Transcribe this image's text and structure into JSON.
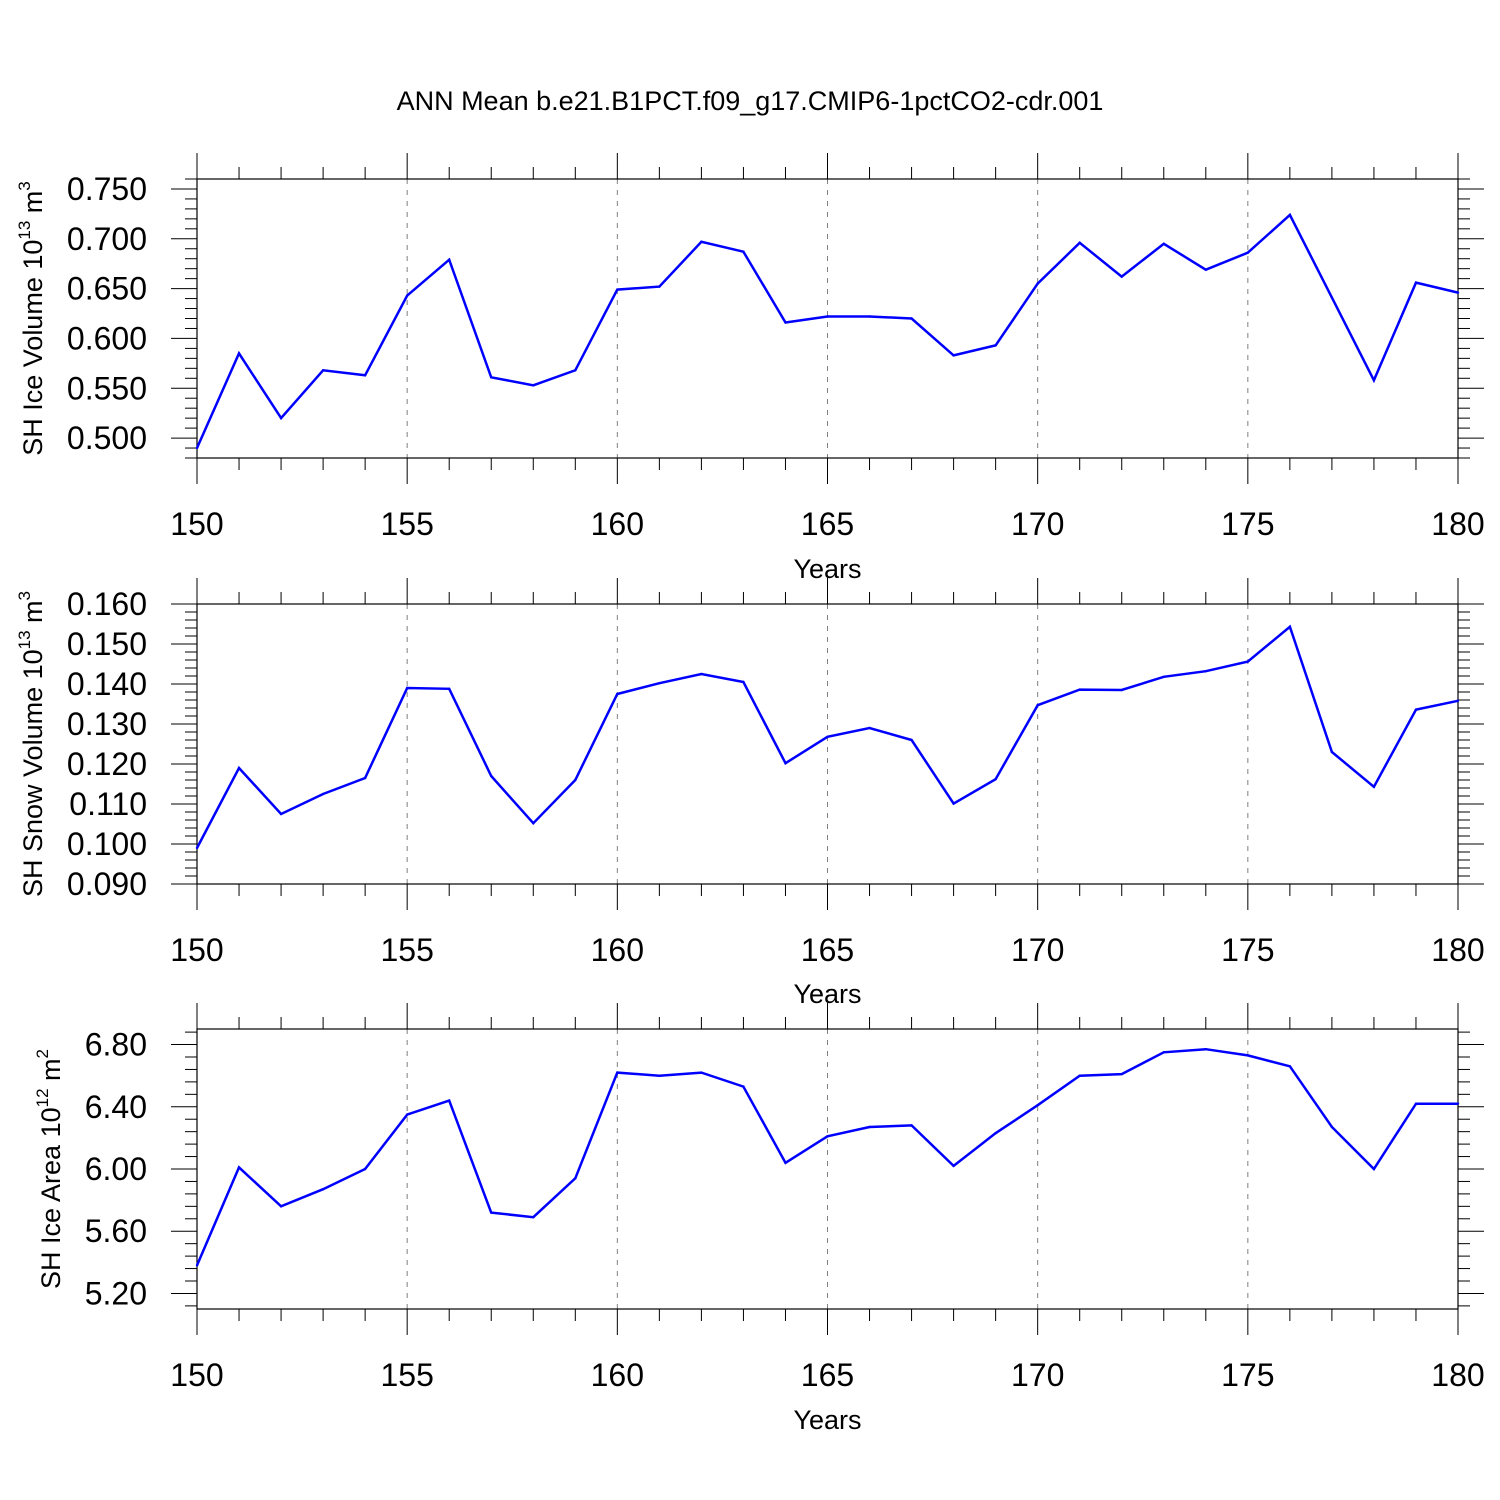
{
  "title": "ANN Mean b.e21.B1PCT.f09_g17.CMIP6-1pctCO2-cdr.001",
  "colors": {
    "line": "#0000ff",
    "axis": "#000000",
    "grid": "#808080"
  },
  "chart_data": [
    {
      "type": "line",
      "ylabel": {
        "text": "SH Ice Volume 10",
        "exp": "13",
        "unit": " m",
        "unit_exp": "3"
      },
      "xlabel": "Years",
      "xlim": [
        150,
        180
      ],
      "ylim": [
        0.48,
        0.76
      ],
      "x_ticks": [
        "150",
        "155",
        "160",
        "165",
        "170",
        "175",
        "180"
      ],
      "y_ticks": [
        "0.500",
        "0.550",
        "0.600",
        "0.650",
        "0.700",
        "0.750"
      ],
      "grid": "dashed-vertical",
      "series": [
        {
          "x": [
            150,
            151,
            152,
            153,
            154,
            155,
            156,
            157,
            158,
            159,
            160,
            161,
            162,
            163,
            164,
            165,
            166,
            167,
            168,
            169,
            170,
            171,
            172,
            173,
            174,
            175,
            176,
            177,
            178,
            179,
            180
          ],
          "values": [
            0.49,
            0.585,
            0.52,
            0.568,
            0.563,
            0.643,
            0.679,
            0.561,
            0.553,
            0.568,
            0.649,
            0.652,
            0.697,
            0.687,
            0.616,
            0.622,
            0.622,
            0.62,
            0.583,
            0.593,
            0.655,
            0.696,
            0.662,
            0.695,
            0.669,
            0.686,
            0.724,
            0.641,
            0.558,
            0.656,
            0.646
          ]
        }
      ]
    },
    {
      "type": "line",
      "ylabel": {
        "text": "SH Snow Volume 10",
        "exp": "13",
        "unit": " m",
        "unit_exp": "3"
      },
      "xlabel": "Years",
      "xlim": [
        150,
        180
      ],
      "ylim": [
        0.09,
        0.16
      ],
      "x_ticks": [
        "150",
        "155",
        "160",
        "165",
        "170",
        "175",
        "180"
      ],
      "y_ticks": [
        "0.090",
        "0.100",
        "0.110",
        "0.120",
        "0.130",
        "0.140",
        "0.150",
        "0.160"
      ],
      "grid": "dashed-vertical",
      "series": [
        {
          "x": [
            150,
            151,
            152,
            153,
            154,
            155,
            156,
            157,
            158,
            159,
            160,
            161,
            162,
            163,
            164,
            165,
            166,
            167,
            168,
            169,
            170,
            171,
            172,
            173,
            174,
            175,
            176,
            177,
            178,
            179,
            180
          ],
          "values": [
            0.099,
            0.119,
            0.1075,
            0.1125,
            0.1165,
            0.139,
            0.1388,
            0.117,
            0.1052,
            0.116,
            0.1375,
            0.1402,
            0.1425,
            0.1405,
            0.1202,
            0.1268,
            0.129,
            0.126,
            0.1101,
            0.1162,
            0.1347,
            0.1386,
            0.1385,
            0.1418,
            0.1432,
            0.1456,
            0.1543,
            0.123,
            0.1143,
            0.1336,
            0.1358
          ]
        }
      ]
    },
    {
      "type": "line",
      "ylabel": {
        "text": "SH Ice Area 10",
        "exp": "12",
        "unit": " m",
        "unit_exp": "2"
      },
      "xlabel": "Years",
      "xlim": [
        150,
        180
      ],
      "ylim": [
        5.1,
        6.9
      ],
      "x_ticks": [
        "150",
        "155",
        "160",
        "165",
        "170",
        "175",
        "180"
      ],
      "y_ticks": [
        "5.20",
        "5.60",
        "6.00",
        "6.40",
        "6.80"
      ],
      "grid": "dashed-vertical",
      "series": [
        {
          "x": [
            150,
            151,
            152,
            153,
            154,
            155,
            156,
            157,
            158,
            159,
            160,
            161,
            162,
            163,
            164,
            165,
            166,
            167,
            168,
            169,
            170,
            171,
            172,
            173,
            174,
            175,
            176,
            177,
            178,
            179,
            180
          ],
          "values": [
            5.38,
            6.01,
            5.76,
            5.87,
            6.0,
            6.35,
            6.44,
            5.72,
            5.69,
            5.94,
            6.62,
            6.6,
            6.62,
            6.53,
            6.04,
            6.21,
            6.27,
            6.28,
            6.02,
            6.23,
            6.41,
            6.6,
            6.61,
            6.75,
            6.77,
            6.73,
            6.66,
            6.27,
            6.0,
            6.42,
            6.42
          ]
        }
      ]
    }
  ]
}
